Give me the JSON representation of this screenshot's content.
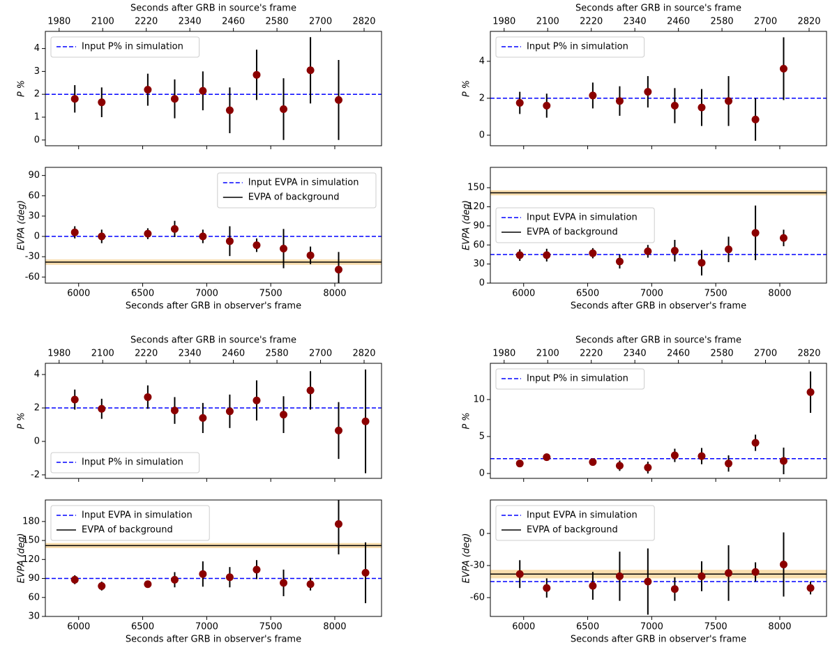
{
  "chart_data": [
    {
      "type": "errorbar",
      "ylabel": "P %",
      "x2label": "Seconds after GRB in source's frame",
      "xlim": [
        5740,
        8365
      ],
      "xticks": [
        6000,
        6500,
        7000,
        7500,
        8000
      ],
      "x2lim": [
        1942,
        2868
      ],
      "x2ticks": [
        1980,
        2100,
        2220,
        2340,
        2460,
        2580,
        2700,
        2820
      ],
      "ylim": [
        -0.25,
        4.75
      ],
      "yticks": [
        0,
        1,
        2,
        3,
        4
      ],
      "x": [
        5970,
        6180,
        6540,
        6750,
        6970,
        7180,
        7390,
        7600,
        7810,
        8030
      ],
      "values": [
        1.8,
        1.65,
        2.2,
        1.8,
        2.15,
        1.3,
        2.85,
        1.35,
        3.05,
        1.75
      ],
      "errors": [
        0.6,
        0.65,
        0.7,
        0.85,
        0.85,
        1.0,
        1.1,
        1.35,
        1.45,
        1.75
      ],
      "color": "#8b0000",
      "legend": "upper left",
      "reference_lines": [
        {
          "name": "Input P% in simulation",
          "value": 2,
          "color": "#0000ff"
        }
      ]
    },
    {
      "type": "errorbar",
      "ylabel": "EVPA (deg)",
      "xlabel": "Seconds after GRB in observer's frame",
      "xlim": [
        5740,
        8365
      ],
      "xticks": [
        6000,
        6500,
        7000,
        7500,
        8000
      ],
      "ylim": [
        -69,
        102
      ],
      "yticks": [
        -60,
        -30,
        0,
        30,
        60,
        90
      ],
      "x": [
        5970,
        6180,
        6540,
        6750,
        6970,
        7180,
        7390,
        7600,
        7810,
        8030
      ],
      "values": [
        6,
        0,
        4,
        11,
        0,
        -7,
        -13,
        -18,
        -28,
        -49
      ],
      "errors": [
        9,
        10,
        8,
        12,
        10,
        22,
        10,
        29,
        13,
        26
      ],
      "color": "#8b0000",
      "legend": "upper right",
      "reference_lines": [
        {
          "name": "Input EVPA in simulation",
          "value": 0,
          "color": "#0000ff"
        },
        {
          "name": "EVPA of background",
          "value": -38,
          "band": 4,
          "color": "#000000",
          "band_color": "#f7d69a"
        }
      ]
    },
    {
      "type": "errorbar",
      "ylabel": "P %",
      "x2label": "Seconds after GRB in source's frame",
      "xlim": [
        5740,
        8365
      ],
      "xticks": [
        6000,
        6500,
        7000,
        7500,
        8000
      ],
      "x2lim": [
        1942,
        2868
      ],
      "x2ticks": [
        1980,
        2100,
        2220,
        2340,
        2460,
        2580,
        2700,
        2820
      ],
      "ylim": [
        -0.57,
        5.62
      ],
      "yticks": [
        0,
        2,
        4
      ],
      "x": [
        5970,
        6180,
        6540,
        6750,
        6970,
        7180,
        7390,
        7600,
        7810,
        8030
      ],
      "values": [
        1.75,
        1.6,
        2.15,
        1.85,
        2.35,
        1.6,
        1.5,
        1.85,
        0.85,
        3.6
      ],
      "errors": [
        0.6,
        0.65,
        0.7,
        0.8,
        0.85,
        0.95,
        1.0,
        1.35,
        1.15,
        1.7
      ],
      "color": "#8b0000",
      "legend": "upper left",
      "reference_lines": [
        {
          "name": "Input P% in simulation",
          "value": 2,
          "color": "#0000ff"
        }
      ]
    },
    {
      "type": "errorbar",
      "ylabel": "EVPA (deg)",
      "xlabel": "Seconds after GRB in observer's frame",
      "xlim": [
        5740,
        8365
      ],
      "xticks": [
        6000,
        6500,
        7000,
        7500,
        8000
      ],
      "ylim": [
        0,
        182
      ],
      "yticks": [
        0,
        30,
        60,
        90,
        120,
        150
      ],
      "x": [
        5970,
        6180,
        6540,
        6750,
        6970,
        7180,
        7390,
        7600,
        7810,
        8030
      ],
      "values": [
        44,
        44,
        47,
        34,
        50,
        51,
        32,
        53,
        79,
        71
      ],
      "errors": [
        9,
        10,
        8,
        11,
        10,
        17,
        20,
        20,
        43,
        13
      ],
      "color": "#8b0000",
      "legend": "center left",
      "reference_lines": [
        {
          "name": "Input EVPA in simulation",
          "value": 45,
          "color": "#0000ff"
        },
        {
          "name": "EVPA of background",
          "value": 142,
          "band": 4,
          "color": "#000000",
          "band_color": "#f7d69a"
        }
      ]
    },
    {
      "type": "errorbar",
      "ylabel": "P %",
      "x2label": "Seconds after GRB in source's frame",
      "xlim": [
        5740,
        8365
      ],
      "xticks": [
        6000,
        6500,
        7000,
        7500,
        8000
      ],
      "x2lim": [
        1942,
        2868
      ],
      "x2ticks": [
        1980,
        2100,
        2220,
        2340,
        2460,
        2580,
        2700,
        2820
      ],
      "ylim": [
        -2.21,
        4.67
      ],
      "yticks": [
        -2,
        0,
        2,
        4
      ],
      "x": [
        5970,
        6180,
        6540,
        6750,
        6970,
        7180,
        7390,
        7600,
        7810,
        8030,
        8240
      ],
      "values": [
        2.5,
        1.95,
        2.65,
        1.85,
        1.4,
        1.8,
        2.45,
        1.6,
        3.05,
        0.65,
        1.2
      ],
      "errors": [
        0.6,
        0.6,
        0.7,
        0.8,
        0.9,
        1.0,
        1.2,
        1.1,
        1.15,
        1.7,
        3.1
      ],
      "color": "#8b0000",
      "legend": "lower left",
      "reference_lines": [
        {
          "name": "Input P% in simulation",
          "value": 2,
          "color": "#0000ff"
        }
      ]
    },
    {
      "type": "errorbar",
      "ylabel": "EVPA (deg)",
      "xlabel": "Seconds after GRB in observer's frame",
      "xlim": [
        5740,
        8365
      ],
      "xticks": [
        6000,
        6500,
        7000,
        7500,
        8000
      ],
      "ylim": [
        30,
        214
      ],
      "yticks": [
        30,
        60,
        90,
        120,
        150,
        180
      ],
      "x": [
        5970,
        6180,
        6540,
        6750,
        6970,
        7180,
        7390,
        7600,
        7810,
        8030,
        8240
      ],
      "values": [
        88,
        78,
        81,
        88,
        97,
        92,
        104,
        83,
        81,
        176,
        99
      ],
      "errors": [
        7,
        7,
        5,
        12,
        20,
        16,
        15,
        21,
        10,
        48,
        48
      ],
      "color": "#8b0000",
      "legend": "upper left",
      "reference_lines": [
        {
          "name": "Input EVPA in simulation",
          "value": 90,
          "color": "#0000ff"
        },
        {
          "name": "EVPA of background",
          "value": 142,
          "band": 4,
          "color": "#000000",
          "band_color": "#f7d69a"
        }
      ]
    },
    {
      "type": "errorbar",
      "ylabel": "P %",
      "x2label": "Seconds after GRB in source's frame",
      "xlim": [
        5740,
        8365
      ],
      "xticks": [
        6000,
        6500,
        7000,
        7500,
        8000
      ],
      "x2lim": [
        1942,
        2868
      ],
      "x2ticks": [
        1980,
        2100,
        2220,
        2340,
        2460,
        2580,
        2700,
        2820
      ],
      "ylim": [
        -0.66,
        14.9
      ],
      "yticks": [
        0,
        5,
        10
      ],
      "x": [
        5970,
        6180,
        6540,
        6750,
        6970,
        7180,
        7390,
        7600,
        7810,
        8030,
        8240
      ],
      "values": [
        1.35,
        2.2,
        1.55,
        1.05,
        0.8,
        2.45,
        2.35,
        1.35,
        4.15,
        1.7,
        11.0
      ],
      "errors": [
        0.4,
        0.5,
        0.4,
        0.7,
        0.8,
        0.9,
        1.1,
        1.1,
        1.1,
        1.8,
        2.8
      ],
      "color": "#8b0000",
      "legend": "upper left",
      "reference_lines": [
        {
          "name": "Input P% in simulation",
          "value": 2,
          "color": "#0000ff"
        }
      ]
    },
    {
      "type": "errorbar",
      "ylabel": "EVPA (deg)",
      "xlabel": "Seconds after GRB in observer's frame",
      "xlim": [
        5740,
        8365
      ],
      "xticks": [
        6000,
        6500,
        7000,
        7500,
        8000
      ],
      "ylim": [
        -77.6,
        31.3
      ],
      "yticks": [
        -60,
        -30,
        0
      ],
      "x": [
        5970,
        6180,
        6540,
        6750,
        6970,
        7180,
        7390,
        7600,
        7810,
        8030,
        8240
      ],
      "values": [
        -38,
        -51,
        -49,
        -40,
        -45,
        -52,
        -40,
        -37,
        -36,
        -29,
        -51
      ],
      "errors": [
        13,
        9,
        13,
        23,
        31,
        11,
        14,
        26,
        9,
        30,
        6
      ],
      "color": "#8b0000",
      "legend": "upper left",
      "reference_lines": [
        {
          "name": "Input EVPA in simulation",
          "value": -45,
          "color": "#0000ff"
        },
        {
          "name": "EVPA of background",
          "value": -38,
          "band": 4,
          "color": "#000000",
          "band_color": "#f7d69a"
        }
      ]
    }
  ]
}
